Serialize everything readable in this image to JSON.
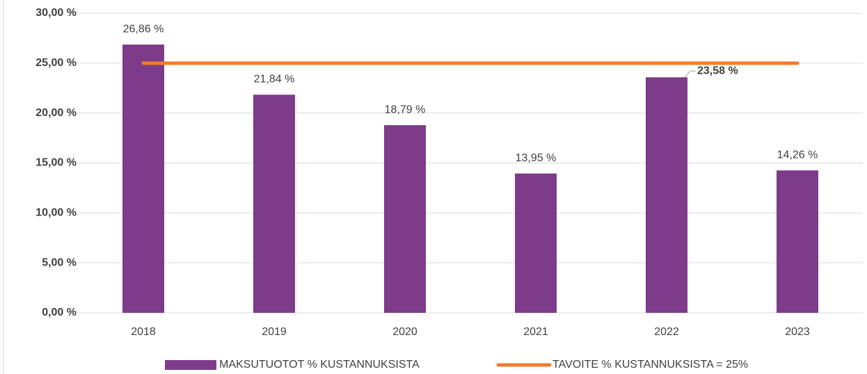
{
  "chart_data": {
    "type": "bar",
    "categories": [
      "2018",
      "2019",
      "2020",
      "2021",
      "2022",
      "2023"
    ],
    "series": [
      {
        "name": "MAKSUTUOTOT % KUSTANNUKSISTA",
        "type": "bar",
        "color": "#7e3b8a",
        "values": [
          26.86,
          21.84,
          18.79,
          13.95,
          23.58,
          14.26
        ],
        "value_labels": [
          "26,86 %",
          "21,84 %",
          "18,79 %",
          "13,95 %",
          "23,58 %",
          "14,26 %"
        ]
      },
      {
        "name": "TAVOITE % KUSTANNUKSISTA = 25%",
        "type": "line",
        "color": "#ed7d31",
        "values": [
          25,
          25,
          25,
          25,
          25,
          25
        ]
      }
    ],
    "ylim": [
      0,
      30
    ],
    "yticks": [
      {
        "value": 0,
        "label": "0,00 %"
      },
      {
        "value": 5,
        "label": "5,00 %"
      },
      {
        "value": 10,
        "label": "10,00 %"
      },
      {
        "value": 15,
        "label": "15,00 %"
      },
      {
        "value": 20,
        "label": "20,00 %"
      },
      {
        "value": 25,
        "label": "25,00 %"
      },
      {
        "value": 30,
        "label": "30,00 %"
      }
    ],
    "grid": true,
    "legend": "bottom"
  }
}
